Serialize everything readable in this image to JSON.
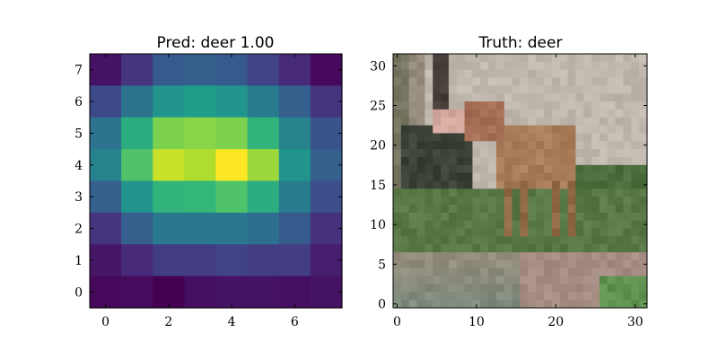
{
  "chart_data": [
    {
      "type": "heatmap",
      "title": "Pred: deer 1.00",
      "xlabel": "",
      "ylabel": "",
      "xlim": [
        -0.5,
        7.5
      ],
      "ylim": [
        7.5,
        -0.5
      ],
      "xticks": [
        0,
        2,
        4,
        6
      ],
      "yticks": [
        0,
        1,
        2,
        3,
        4,
        5,
        6,
        7
      ],
      "colormap": "viridis",
      "grid": false,
      "values": [
        [
          0.05,
          0.15,
          0.28,
          0.3,
          0.28,
          0.2,
          0.12,
          0.02
        ],
        [
          0.22,
          0.38,
          0.52,
          0.55,
          0.52,
          0.42,
          0.3,
          0.15
        ],
        [
          0.38,
          0.62,
          0.8,
          0.82,
          0.8,
          0.65,
          0.45,
          0.26
        ],
        [
          0.45,
          0.72,
          0.92,
          0.88,
          1.0,
          0.85,
          0.52,
          0.3
        ],
        [
          0.3,
          0.52,
          0.65,
          0.66,
          0.72,
          0.62,
          0.42,
          0.24
        ],
        [
          0.15,
          0.3,
          0.4,
          0.4,
          0.4,
          0.36,
          0.28,
          0.14
        ],
        [
          0.06,
          0.12,
          0.18,
          0.18,
          0.2,
          0.18,
          0.18,
          0.08
        ],
        [
          0.02,
          0.03,
          0.0,
          0.04,
          0.05,
          0.05,
          0.04,
          0.05
        ]
      ]
    },
    {
      "type": "image",
      "title": "Truth: deer",
      "xlabel": "",
      "ylabel": "",
      "xlim": [
        -0.5,
        31.5
      ],
      "ylim": [
        31.5,
        -0.5
      ],
      "xticks": [
        0,
        10,
        20,
        30
      ],
      "yticks": [
        0,
        5,
        10,
        15,
        20,
        25,
        30
      ],
      "image_description": "Low-resolution 32x32 photo of a deer standing on grass in front of a pale wall"
    }
  ]
}
